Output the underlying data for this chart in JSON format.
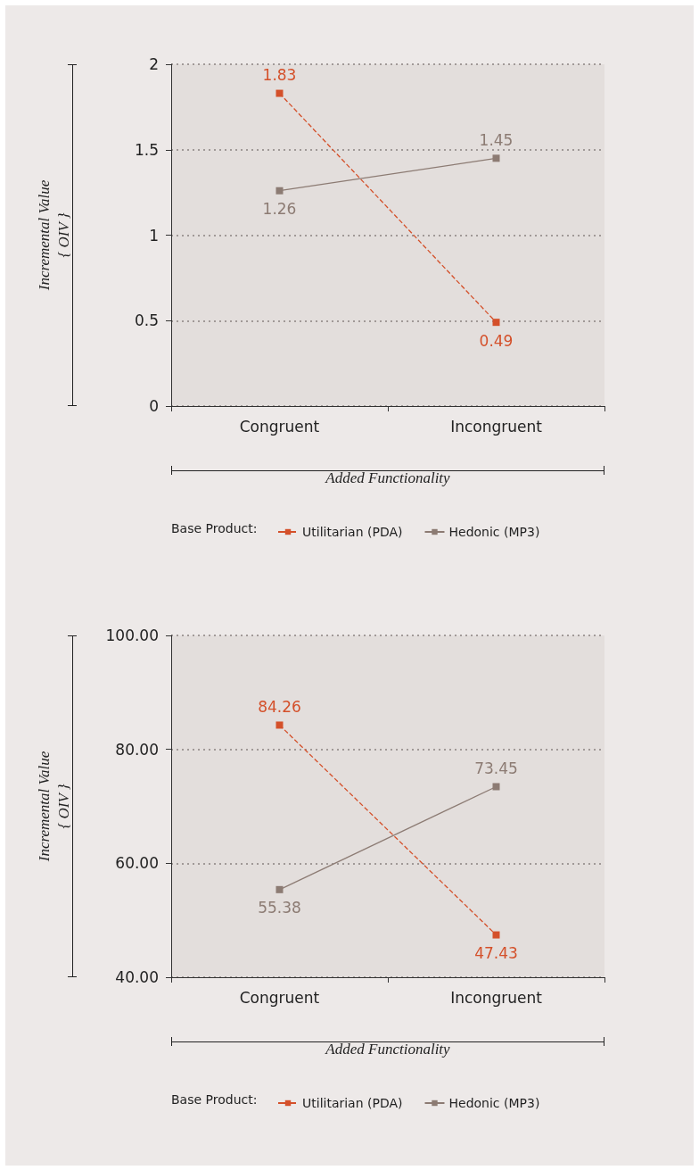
{
  "chart_data": [
    {
      "type": "line",
      "categories": [
        "Congruent",
        "Incongruent"
      ],
      "xlabel": "Added Functionality",
      "ylabel": "Incremental Value\n{ OIV }",
      "legend_title": "Base Product:",
      "series": [
        {
          "name": "Utilitarian (PDA)",
          "color": "#d4502a",
          "values": [
            1.83,
            0.49
          ],
          "line_style": "dashed"
        },
        {
          "name": "Hedonic (MP3)",
          "color": "#8c7b73",
          "values": [
            1.26,
            1.45
          ],
          "line_style": "solid"
        }
      ],
      "ylim": [
        0,
        2
      ],
      "yticks": [
        0,
        0.5,
        1,
        1.5,
        2
      ],
      "grid": "y",
      "legend": "bottom",
      "marker": "square",
      "data_labels": true
    },
    {
      "type": "line",
      "categories": [
        "Congruent",
        "Incongruent"
      ],
      "xlabel": "Added Functionality",
      "ylabel": "Incremental Value\n{ OIV }",
      "legend_title": "Base Product:",
      "series": [
        {
          "name": "Utilitarian (PDA)",
          "color": "#d4502a",
          "values": [
            84.26,
            47.43
          ],
          "line_style": "dashed"
        },
        {
          "name": "Hedonic (MP3)",
          "color": "#8c7b73",
          "values": [
            55.38,
            73.45
          ],
          "line_style": "solid"
        }
      ],
      "ylim": [
        40,
        100
      ],
      "yticks": [
        {
          "value": 40,
          "label": "40.00"
        },
        {
          "value": 60,
          "label": "60.00"
        },
        {
          "value": 80,
          "label": "80.00"
        },
        {
          "value": 100,
          "label": "100.00"
        }
      ],
      "grid": "y",
      "legend": "bottom",
      "marker": "square",
      "data_labels": true
    }
  ]
}
